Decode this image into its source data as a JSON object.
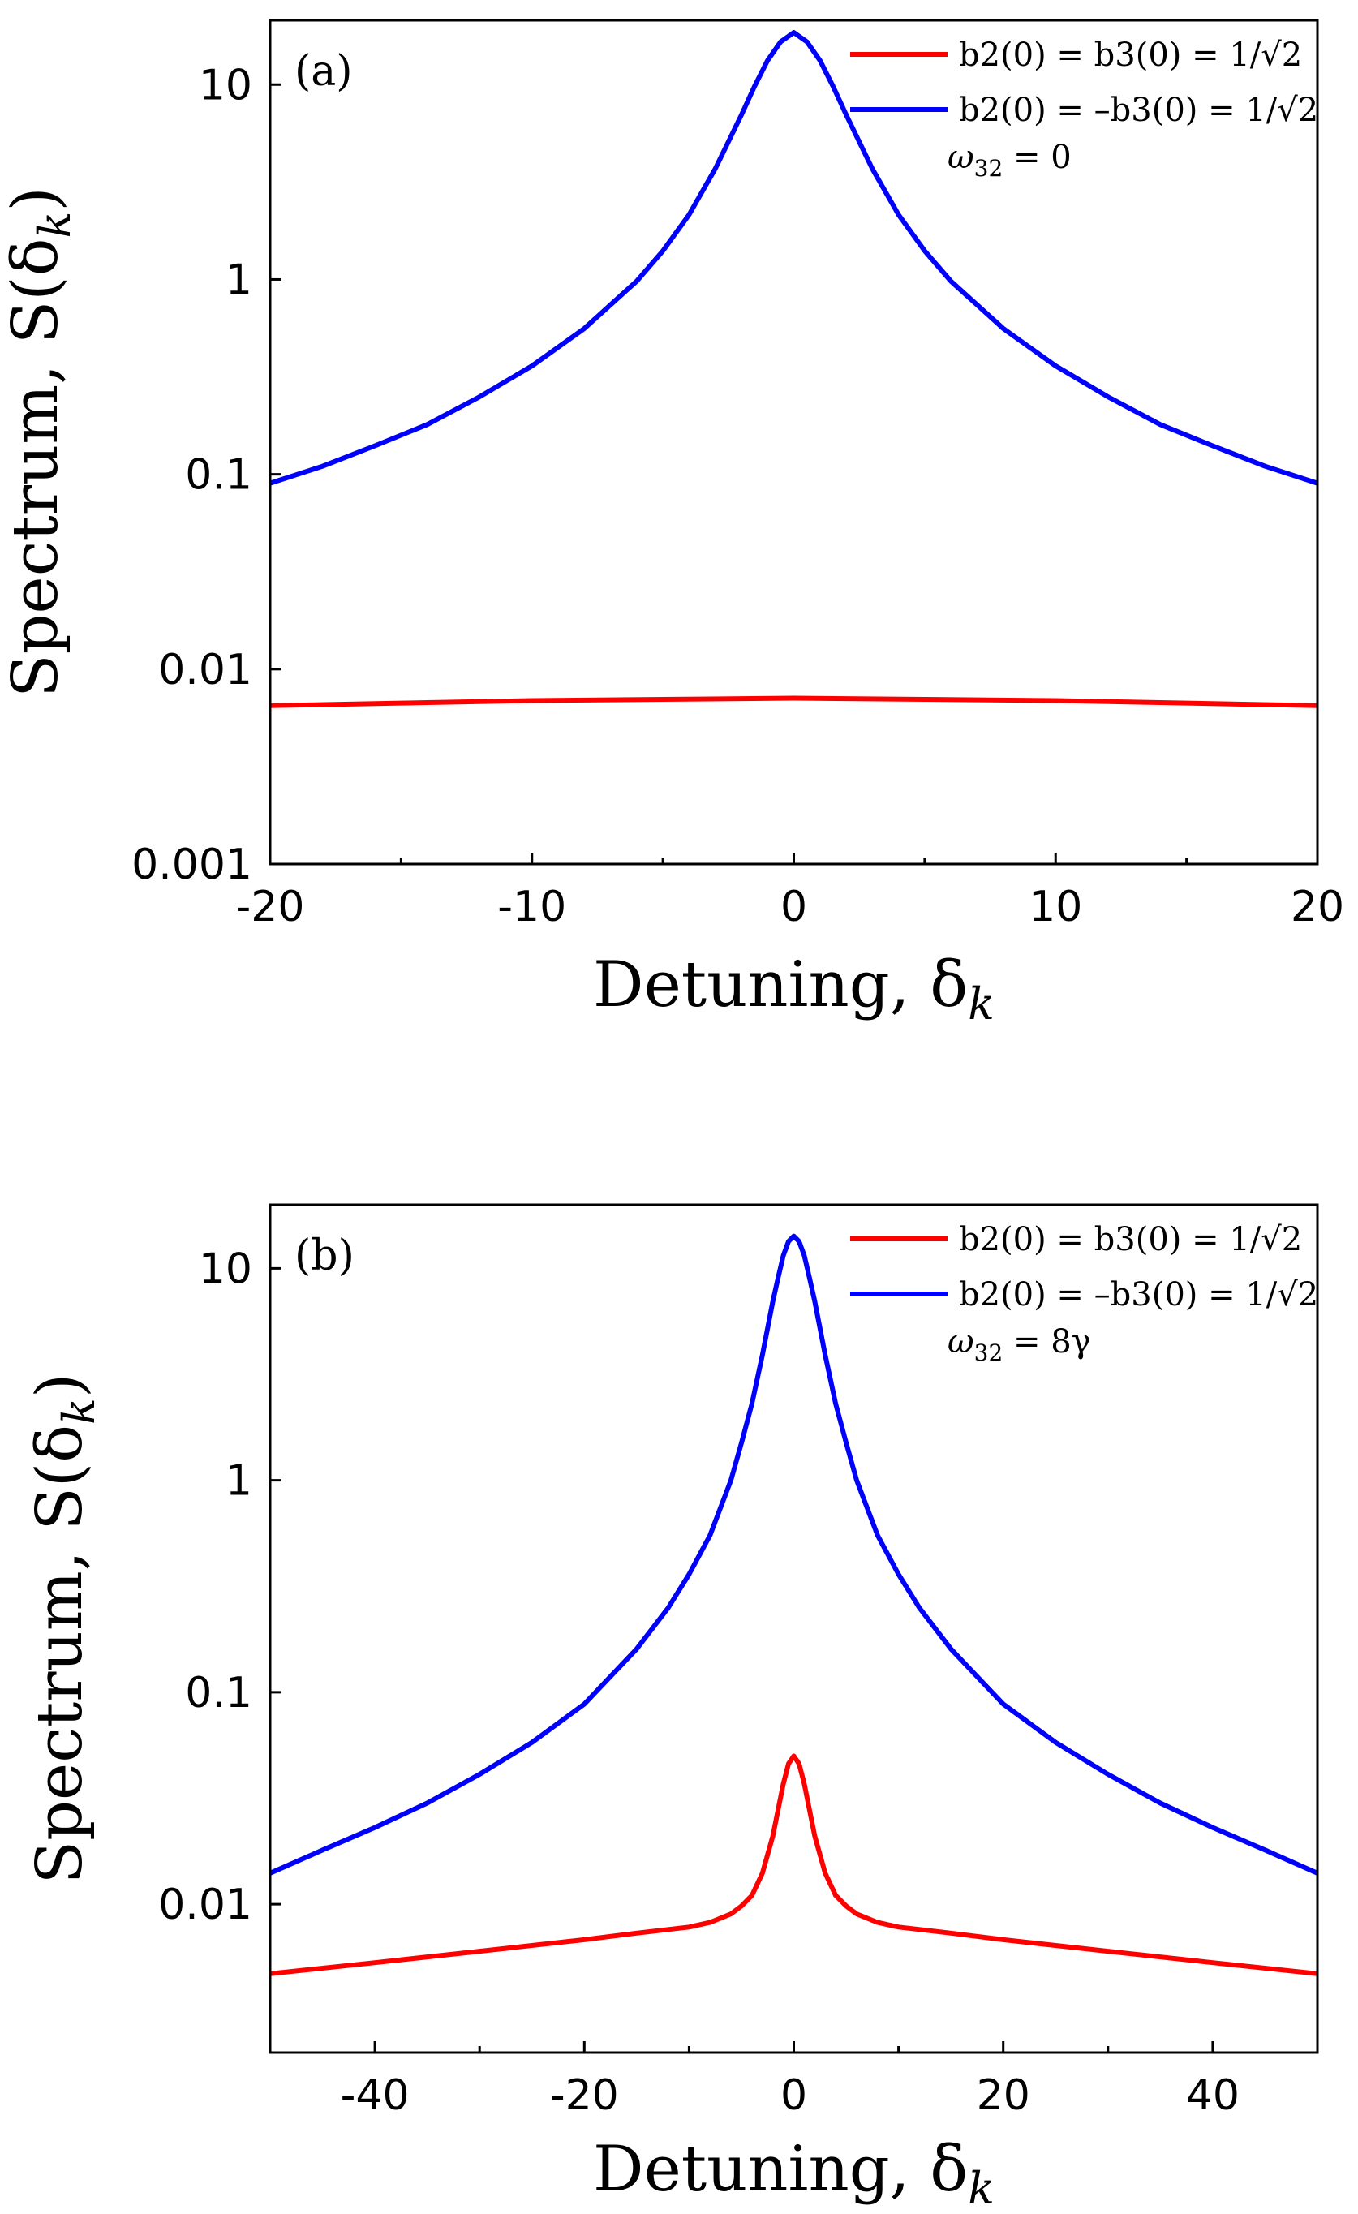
{
  "figure_caption": "",
  "colors": {
    "red": "#ff0000",
    "blue": "#0000ff"
  },
  "chart_data": [
    {
      "type": "line",
      "panel_label": "(a)",
      "title": "",
      "xlabel": "Detuning, δ",
      "xlabel_sub": "k",
      "ylabel": "Spectrum, S(δ",
      "ylabel_sub": "k",
      "ylabel_close": ")",
      "xlim": [
        -20,
        20
      ],
      "ylim_log10": [
        -3,
        1.33
      ],
      "yscale": "log",
      "x_ticks": [
        -20,
        -10,
        0,
        10,
        20
      ],
      "x_tick_labels": [
        "-20",
        "-10",
        "0",
        "10",
        "20"
      ],
      "x_minor_ticks": [
        -15,
        -5,
        5,
        15
      ],
      "y_ticks": [
        0.001,
        0.01,
        0.1,
        1,
        10
      ],
      "y_tick_labels": [
        "0.001",
        "0.01",
        "0.1",
        "1",
        "10"
      ],
      "annotation_prefix": "ω",
      "annotation_sub": "32",
      "annotation_value": " = 0",
      "series": [
        {
          "name": "b2(0) =   b3(0) = 1/√2",
          "color": "#ff0000",
          "x": [
            -20,
            -15,
            -10,
            -5,
            0,
            5,
            10,
            15,
            20
          ],
          "y": [
            0.0065,
            0.0067,
            0.0069,
            0.007,
            0.0071,
            0.007,
            0.0069,
            0.0067,
            0.0065
          ]
        },
        {
          "name": "b2(0) = –b3(0) = 1/√2",
          "color": "#0000ff",
          "x": [
            -20,
            -18,
            -16,
            -14,
            -12,
            -10,
            -8,
            -6,
            -5,
            -4,
            -3,
            -2,
            -1.5,
            -1,
            -0.5,
            0,
            0.5,
            1,
            1.5,
            2,
            3,
            4,
            5,
            6,
            8,
            10,
            12,
            14,
            16,
            18,
            20
          ],
          "y": [
            0.09,
            0.11,
            0.14,
            0.18,
            0.25,
            0.36,
            0.56,
            0.98,
            1.4,
            2.15,
            3.7,
            7.0,
            9.8,
            13.3,
            16.6,
            18.5,
            16.6,
            13.3,
            9.8,
            7.0,
            3.7,
            2.15,
            1.4,
            0.98,
            0.56,
            0.36,
            0.25,
            0.18,
            0.14,
            0.11,
            0.09
          ]
        }
      ]
    },
    {
      "type": "line",
      "panel_label": "(b)",
      "title": "",
      "xlabel": "Detuning, δ",
      "xlabel_sub": "k",
      "ylabel": "Spectrum, S(δ",
      "ylabel_sub": "k",
      "ylabel_close": ")",
      "xlim": [
        -50,
        50
      ],
      "ylim_log10": [
        -2.7,
        1.3
      ],
      "yscale": "log",
      "x_ticks": [
        -40,
        -20,
        0,
        20,
        40
      ],
      "x_tick_labels": [
        "-40",
        "-20",
        "0",
        "20",
        "40"
      ],
      "x_minor_ticks": [
        -50,
        -30,
        -10,
        10,
        30,
        50
      ],
      "y_ticks": [
        0.01,
        0.1,
        1,
        10
      ],
      "y_tick_labels": [
        "0.01",
        "0.1",
        "1",
        "10"
      ],
      "annotation_prefix": "ω",
      "annotation_sub": "32",
      "annotation_value": " = 8γ",
      "series": [
        {
          "name": "b2(0) =   b3(0) = 1/√2",
          "color": "#ff0000",
          "x": [
            -50,
            -40,
            -30,
            -20,
            -15,
            -10,
            -8,
            -6,
            -5,
            -4,
            -3,
            -2,
            -1,
            -0.5,
            0,
            0.5,
            1,
            2,
            3,
            4,
            5,
            6,
            8,
            10,
            15,
            20,
            30,
            40,
            50
          ],
          "y": [
            0.0047,
            0.0053,
            0.006,
            0.0068,
            0.0073,
            0.0078,
            0.0082,
            0.009,
            0.0098,
            0.011,
            0.014,
            0.021,
            0.037,
            0.046,
            0.05,
            0.046,
            0.037,
            0.021,
            0.014,
            0.011,
            0.0098,
            0.009,
            0.0082,
            0.0078,
            0.0073,
            0.0068,
            0.006,
            0.0053,
            0.0047
          ]
        },
        {
          "name": "b2(0) = –b3(0) = 1/√2",
          "color": "#0000ff",
          "x": [
            -50,
            -45,
            -40,
            -35,
            -30,
            -25,
            -20,
            -15,
            -12,
            -10,
            -8,
            -6,
            -5,
            -4,
            -3,
            -2,
            -1.5,
            -1,
            -0.5,
            0,
            0.5,
            1,
            1.5,
            2,
            3,
            4,
            5,
            6,
            8,
            10,
            12,
            15,
            20,
            25,
            30,
            35,
            40,
            45,
            50
          ],
          "y": [
            0.014,
            0.018,
            0.023,
            0.03,
            0.041,
            0.058,
            0.088,
            0.16,
            0.25,
            0.36,
            0.55,
            1.0,
            1.5,
            2.3,
            3.9,
            7.0,
            9.0,
            11.5,
            13.4,
            14.2,
            13.4,
            11.5,
            9.0,
            7.0,
            3.9,
            2.3,
            1.5,
            1.0,
            0.55,
            0.36,
            0.25,
            0.16,
            0.088,
            0.058,
            0.041,
            0.03,
            0.023,
            0.018,
            0.014
          ]
        }
      ]
    }
  ]
}
